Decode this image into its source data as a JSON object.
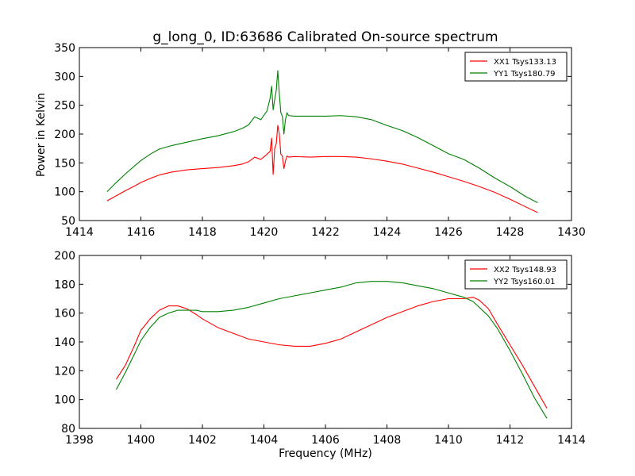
{
  "figure": {
    "title": "g_long_0, ID:63686 Calibrated On-source spectrum"
  },
  "chart_data": [
    {
      "type": "line",
      "title": "g_long_0, ID:63686 Calibrated On-source spectrum",
      "xlabel": "",
      "ylabel": "Power in Kelvin",
      "xlim": [
        1414,
        1430
      ],
      "ylim": [
        50,
        350
      ],
      "xticks": [
        1414,
        1416,
        1418,
        1420,
        1422,
        1424,
        1426,
        1428,
        1430
      ],
      "yticks": [
        50,
        100,
        150,
        200,
        250,
        300,
        350
      ],
      "grid": false,
      "legend_position": "top-right",
      "series": [
        {
          "name": "XX1 Tsys133.13",
          "color": "#ff0000",
          "x": [
            1414.9,
            1415.2,
            1415.5,
            1415.8,
            1416.0,
            1416.3,
            1416.6,
            1417.0,
            1417.5,
            1418.0,
            1418.5,
            1419.0,
            1419.3,
            1419.5,
            1419.7,
            1419.9,
            1420.1,
            1420.2,
            1420.25,
            1420.3,
            1420.35,
            1420.4,
            1420.45,
            1420.5,
            1420.55,
            1420.6,
            1420.65,
            1420.7,
            1420.75,
            1420.8,
            1421.0,
            1421.5,
            1422.0,
            1422.5,
            1423.0,
            1423.5,
            1424.0,
            1424.5,
            1425.0,
            1425.5,
            1426.0,
            1426.5,
            1427.0,
            1427.5,
            1428.0,
            1428.5,
            1428.9
          ],
          "y": [
            84,
            93,
            102,
            110,
            116,
            123,
            129,
            134,
            138,
            140,
            142,
            145,
            148,
            152,
            160,
            156,
            165,
            170,
            193,
            130,
            175,
            183,
            215,
            200,
            165,
            162,
            140,
            153,
            162,
            160,
            161,
            160,
            161,
            161,
            160,
            157,
            153,
            148,
            141,
            134,
            126,
            118,
            109,
            99,
            87,
            74,
            64
          ]
        },
        {
          "name": "YY1 Tsys180.79",
          "color": "#008000",
          "x": [
            1414.9,
            1415.2,
            1415.5,
            1415.8,
            1416.0,
            1416.3,
            1416.6,
            1417.0,
            1417.5,
            1418.0,
            1418.5,
            1419.0,
            1419.3,
            1419.5,
            1419.7,
            1419.9,
            1420.1,
            1420.2,
            1420.25,
            1420.3,
            1420.35,
            1420.4,
            1420.45,
            1420.5,
            1420.55,
            1420.6,
            1420.65,
            1420.7,
            1420.75,
            1420.8,
            1421.0,
            1421.5,
            1422.0,
            1422.5,
            1423.0,
            1423.5,
            1424.0,
            1424.5,
            1425.0,
            1425.5,
            1426.0,
            1426.5,
            1427.0,
            1427.5,
            1428.0,
            1428.5,
            1428.9
          ],
          "y": [
            100,
            116,
            131,
            145,
            154,
            165,
            174,
            180,
            186,
            192,
            197,
            204,
            210,
            216,
            230,
            225,
            240,
            262,
            283,
            242,
            260,
            275,
            310,
            270,
            237,
            231,
            200,
            225,
            237,
            232,
            231,
            231,
            231,
            232,
            230,
            225,
            215,
            206,
            194,
            180,
            166,
            156,
            141,
            124,
            109,
            92,
            81
          ]
        }
      ]
    },
    {
      "type": "line",
      "title": "",
      "xlabel": "Frequency (MHz)",
      "ylabel": "",
      "xlim": [
        1398,
        1414
      ],
      "ylim": [
        80,
        200
      ],
      "xticks": [
        1398,
        1400,
        1402,
        1404,
        1406,
        1408,
        1410,
        1412,
        1414
      ],
      "yticks": [
        80,
        100,
        120,
        140,
        160,
        180,
        200
      ],
      "grid": false,
      "legend_position": "top-right",
      "series": [
        {
          "name": "XX2 Tsys148.93",
          "color": "#ff0000",
          "x": [
            1399.2,
            1399.5,
            1399.8,
            1400.0,
            1400.3,
            1400.6,
            1400.9,
            1401.2,
            1401.5,
            1401.8,
            1402.0,
            1402.5,
            1403.0,
            1403.5,
            1404.0,
            1404.5,
            1405.0,
            1405.5,
            1406.0,
            1406.5,
            1407.0,
            1407.5,
            1408.0,
            1408.5,
            1409.0,
            1409.5,
            1410.0,
            1410.5,
            1410.8,
            1411.0,
            1411.3,
            1411.6,
            1412.0,
            1412.4,
            1412.8,
            1413.2
          ],
          "y": [
            114,
            124,
            138,
            148,
            156,
            162,
            165,
            165,
            163,
            159,
            156,
            150,
            146,
            142,
            140,
            138,
            137,
            137,
            139,
            142,
            147,
            152,
            157,
            161,
            165,
            168,
            170,
            170,
            171,
            169,
            163,
            152,
            138,
            124,
            109,
            94
          ]
        },
        {
          "name": "YY2 Tsys160.01",
          "color": "#008000",
          "x": [
            1399.2,
            1399.5,
            1399.8,
            1400.0,
            1400.3,
            1400.6,
            1400.9,
            1401.2,
            1401.5,
            1401.8,
            1402.0,
            1402.5,
            1403.0,
            1403.5,
            1404.0,
            1404.5,
            1405.0,
            1405.5,
            1406.0,
            1406.5,
            1407.0,
            1407.5,
            1408.0,
            1408.5,
            1409.0,
            1409.5,
            1410.0,
            1410.5,
            1410.8,
            1411.0,
            1411.3,
            1411.6,
            1412.0,
            1412.4,
            1412.8,
            1413.2
          ],
          "y": [
            107,
            119,
            132,
            141,
            150,
            157,
            160,
            162,
            162,
            162,
            161,
            161,
            162,
            164,
            167,
            170,
            172,
            174,
            176,
            178,
            181,
            182,
            182,
            181,
            179,
            177,
            174,
            171,
            168,
            164,
            158,
            149,
            134,
            118,
            101,
            87
          ]
        }
      ]
    }
  ]
}
